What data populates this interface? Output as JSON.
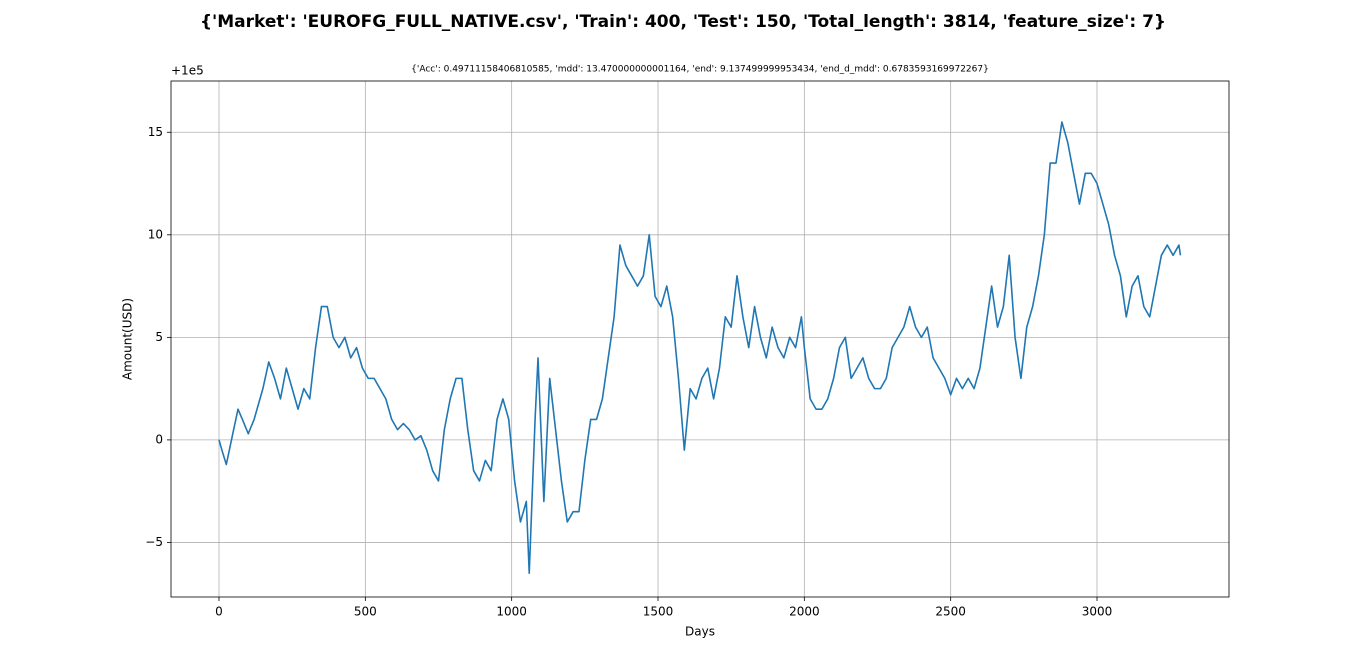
{
  "chart_data": {
    "type": "line",
    "title": "{'Market': 'EUROFG_FULL_NATIVE.csv', 'Train': 400, 'Test': 150, 'Total_length': 3814, 'feature_size': 7}",
    "subtitle": "{'Acc': 0.49711158406810585, 'mdd': 13.470000000001164, 'end': 9.137499999953434, 'end_d_mdd': 0.6783593169972267}",
    "x_label": "Days",
    "y_label": "Amount(USD)",
    "y_offset_label": "+1e5",
    "xlim": [
      -164,
      3451
    ],
    "ylim": [
      -7.66,
      17.5
    ],
    "xticks": [
      0,
      500,
      1000,
      1500,
      2000,
      2500,
      3000
    ],
    "yticks": [
      {
        "value": -5,
        "label": "−5"
      },
      0,
      5,
      10,
      15
    ],
    "grid": true,
    "series": [
      {
        "name": "Amount",
        "color": "#1f77b4",
        "x": [
          0,
          10,
          25,
          50,
          65,
          80,
          100,
          120,
          150,
          170,
          190,
          210,
          230,
          250,
          270,
          290,
          310,
          330,
          350,
          370,
          390,
          410,
          430,
          450,
          470,
          490,
          510,
          530,
          550,
          570,
          590,
          610,
          630,
          650,
          670,
          690,
          710,
          730,
          750,
          770,
          790,
          810,
          830,
          850,
          870,
          890,
          910,
          930,
          950,
          970,
          990,
          1010,
          1030,
          1050,
          1060,
          1080,
          1090,
          1110,
          1130,
          1150,
          1170,
          1190,
          1210,
          1230,
          1250,
          1270,
          1290,
          1310,
          1330,
          1350,
          1370,
          1390,
          1410,
          1430,
          1450,
          1470,
          1490,
          1510,
          1530,
          1550,
          1570,
          1590,
          1610,
          1630,
          1650,
          1670,
          1690,
          1710,
          1730,
          1750,
          1770,
          1790,
          1810,
          1830,
          1850,
          1870,
          1890,
          1910,
          1930,
          1950,
          1970,
          1990,
          2000,
          2020,
          2040,
          2060,
          2080,
          2100,
          2120,
          2140,
          2160,
          2180,
          2200,
          2220,
          2240,
          2260,
          2280,
          2300,
          2320,
          2340,
          2360,
          2380,
          2400,
          2420,
          2440,
          2460,
          2480,
          2500,
          2520,
          2540,
          2560,
          2580,
          2600,
          2620,
          2640,
          2660,
          2680,
          2700,
          2720,
          2740,
          2760,
          2780,
          2800,
          2820,
          2840,
          2860,
          2880,
          2900,
          2920,
          2940,
          2960,
          2980,
          3000,
          3020,
          3040,
          3060,
          3080,
          3100,
          3120,
          3140,
          3160,
          3180,
          3200,
          3220,
          3240,
          3260,
          3280,
          3285
        ],
        "values": [
          0,
          -0.5,
          -1.2,
          0.5,
          1.5,
          1.0,
          0.3,
          1.0,
          2.5,
          3.8,
          3.0,
          2.0,
          3.5,
          2.5,
          1.5,
          2.5,
          2.0,
          4.5,
          6.5,
          6.5,
          5.0,
          4.5,
          5.0,
          4.0,
          4.5,
          3.5,
          3.0,
          3.0,
          2.5,
          2.0,
          1.0,
          0.5,
          0.8,
          0.5,
          0.0,
          0.2,
          -0.5,
          -1.5,
          -2.0,
          0.5,
          2.0,
          3.0,
          3.0,
          0.5,
          -1.5,
          -2.0,
          -1.0,
          -1.5,
          1.0,
          2.0,
          1.0,
          -2.0,
          -4.0,
          -3.0,
          -6.5,
          1.0,
          4.0,
          -3.0,
          3.0,
          0.5,
          -2.0,
          -4.0,
          -3.5,
          -3.5,
          -1.0,
          1.0,
          1.0,
          2.0,
          4.0,
          6.0,
          9.5,
          8.5,
          8.0,
          7.5,
          8.0,
          10.0,
          7.0,
          6.5,
          7.5,
          6.0,
          3.0,
          -0.5,
          2.5,
          2.0,
          3.0,
          3.5,
          2.0,
          3.5,
          6.0,
          5.5,
          8.0,
          6.0,
          4.5,
          6.5,
          5.0,
          4.0,
          5.5,
          4.5,
          4.0,
          5.0,
          4.5,
          6.0,
          4.5,
          2.0,
          1.5,
          1.5,
          2.0,
          3.0,
          4.5,
          5.0,
          3.0,
          3.5,
          4.0,
          3.0,
          2.5,
          2.5,
          3.0,
          4.5,
          5.0,
          5.5,
          6.5,
          5.5,
          5.0,
          5.5,
          4.0,
          3.5,
          3.0,
          2.2,
          3.0,
          2.5,
          3.0,
          2.5,
          3.5,
          5.5,
          7.5,
          5.5,
          6.5,
          9.0,
          5.0,
          3.0,
          5.5,
          6.5,
          8.0,
          10.0,
          13.5,
          13.5,
          15.5,
          14.5,
          13.0,
          11.5,
          13.0,
          13.0,
          12.5,
          11.5,
          10.5,
          9.0,
          8.0,
          6.0,
          7.5,
          8.0,
          6.5,
          6.0,
          7.5,
          9.0,
          9.5,
          9.0,
          9.5,
          9.0
        ]
      }
    ]
  }
}
